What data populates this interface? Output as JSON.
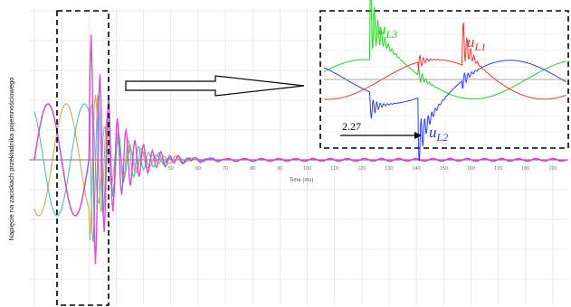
{
  "chart_data": {
    "type": "line",
    "ylabel": "Napięcie na zaciskach przekładnika pojemnościowego",
    "xlabel": "Time (ms)",
    "x_ticks": [
      50,
      60,
      70,
      80,
      90,
      100,
      110,
      120,
      130,
      140,
      150,
      160,
      170,
      180,
      190
    ],
    "xlim": [
      0,
      195
    ],
    "grid": true,
    "series": [
      {
        "name": "uL1",
        "color": "#e8332a"
      },
      {
        "name": "uL2",
        "color": "#2233ff"
      },
      {
        "name": "uL3",
        "color": "#22cc22"
      }
    ],
    "main_traces": {
      "colors": [
        "#d63bd6",
        "#3fb8b0",
        "#c8a040",
        "#9a9acb"
      ]
    },
    "inset": {
      "labels": [
        {
          "base": "u",
          "sub": "L3",
          "color": "#22cc22"
        },
        {
          "base": "u",
          "sub": "L1",
          "color": "#e8332a"
        },
        {
          "base": "u",
          "sub": "L2",
          "color": "#2233ff"
        }
      ],
      "annotation": "2.27"
    }
  }
}
